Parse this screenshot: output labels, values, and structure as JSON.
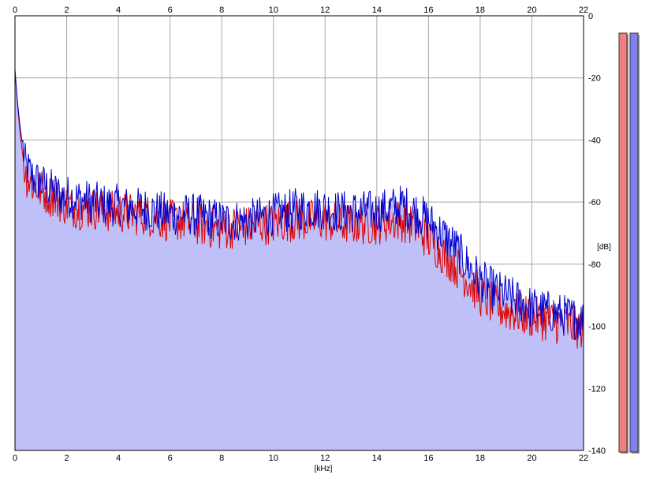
{
  "chart_data": {
    "type": "area",
    "x_unit_label": "[kHz]",
    "y_unit_label": "[dB]",
    "xlim": [
      0,
      22
    ],
    "ylim": [
      -140,
      0
    ],
    "x_ticks": [
      "0",
      "2",
      "4",
      "6",
      "8",
      "10",
      "12",
      "14",
      "16",
      "18",
      "20",
      "22"
    ],
    "y_ticks": [
      "0",
      "-20",
      "-40",
      "-60",
      "-80",
      "-100",
      "-120",
      "-140"
    ],
    "grid": true,
    "series": [
      {
        "color": "#0000cc",
        "fill": "#c0c0f8",
        "x": [
          0,
          0.1,
          0.2,
          0.3,
          0.4,
          0.6,
          0.8,
          1.0,
          1.2,
          1.4,
          1.6,
          1.8,
          2.0,
          2.5,
          3.0,
          3.5,
          4.0,
          4.5,
          5.0,
          5.5,
          6.0,
          6.5,
          7.0,
          7.5,
          8.0,
          8.5,
          9.0,
          9.5,
          10.0,
          10.5,
          11.0,
          11.5,
          12.0,
          12.5,
          13.0,
          13.5,
          14.0,
          14.5,
          15.0,
          15.5,
          16.0,
          16.5,
          17.0,
          17.5,
          18.0,
          18.5,
          19.0,
          19.5,
          20.0,
          20.5,
          21.0,
          21.5,
          22.0
        ],
        "y": [
          -18,
          -28,
          -36,
          -42,
          -48,
          -51,
          -53,
          -54,
          -55,
          -56,
          -57,
          -58,
          -58,
          -59,
          -60,
          -61,
          -61,
          -62,
          -62,
          -63,
          -64,
          -64,
          -64,
          -65,
          -66,
          -66,
          -66,
          -65,
          -64,
          -63,
          -62,
          -62,
          -62,
          -63,
          -63,
          -63,
          -63,
          -62,
          -61,
          -63,
          -66,
          -70,
          -74,
          -80,
          -85,
          -88,
          -90,
          -92,
          -94,
          -95,
          -96,
          -97,
          -98
        ]
      },
      {
        "color": "#dd0000",
        "x": [
          0,
          0.1,
          0.2,
          0.3,
          0.4,
          0.6,
          0.8,
          1.0,
          1.2,
          1.4,
          1.6,
          1.8,
          2.0,
          2.5,
          3.0,
          3.5,
          4.0,
          4.5,
          5.0,
          5.5,
          6.0,
          6.5,
          7.0,
          7.5,
          8.0,
          8.5,
          9.0,
          9.5,
          10.0,
          10.5,
          11.0,
          11.5,
          12.0,
          12.5,
          13.0,
          13.5,
          14.0,
          14.5,
          15.0,
          15.5,
          16.0,
          16.5,
          17.0,
          17.5,
          18.0,
          18.5,
          19.0,
          19.5,
          20.0,
          20.5,
          21.0,
          21.5,
          22.0
        ],
        "y": [
          -17,
          -29,
          -38,
          -45,
          -51,
          -54,
          -55,
          -56,
          -57,
          -58,
          -59,
          -60,
          -61,
          -62,
          -62,
          -63,
          -63,
          -64,
          -64,
          -65,
          -66,
          -66,
          -67,
          -68,
          -69,
          -68,
          -68,
          -67,
          -67,
          -66,
          -66,
          -66,
          -66,
          -67,
          -67,
          -67,
          -67,
          -66,
          -66,
          -68,
          -72,
          -76,
          -80,
          -85,
          -90,
          -93,
          -95,
          -96,
          -97,
          -98,
          -99,
          -100,
          -101
        ]
      }
    ],
    "level_meters": [
      {
        "color": "#f08080",
        "level": 1.0
      },
      {
        "color": "#8080f0",
        "level": 1.0
      }
    ]
  }
}
